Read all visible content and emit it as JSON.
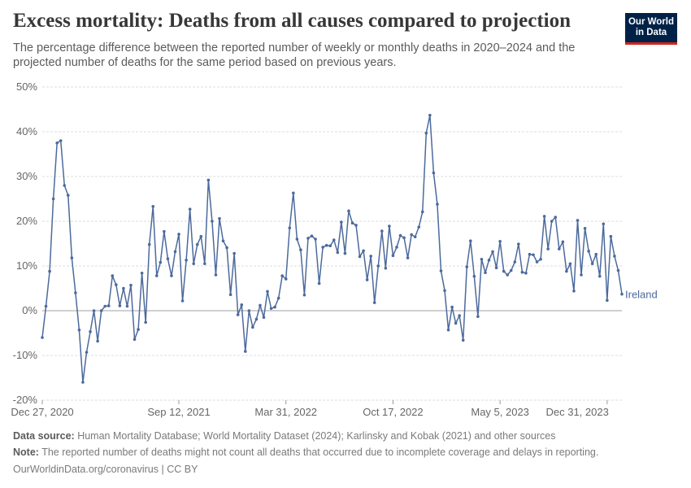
{
  "header": {
    "title": "Excess mortality: Deaths from all causes compared to projection",
    "subtitle": "The percentage difference between the reported number of weekly or monthly deaths in 2020–2024 and the projected number of deaths for the same period based on previous years.",
    "logo_line1": "Our World",
    "logo_line2": "in Data"
  },
  "footer": {
    "source_label": "Data source:",
    "source_text": " Human Mortality Database; World Mortality Dataset (2024); Karlinsky and Kobak (2021) and other sources",
    "note_label": "Note:",
    "note_text": " The reported number of deaths might not count all deaths that occurred due to incomplete coverage and delays in reporting.",
    "credit": "OurWorldinData.org/coronavirus | CC BY"
  },
  "colors": {
    "series": "#4c6a9c",
    "grid": "#dddddd",
    "zero_line": "#a1a1a1",
    "brand": "#002147",
    "brand_accent": "#ce261e"
  },
  "chart_data": {
    "type": "line",
    "title": "Excess mortality: Deaths from all causes compared to projection",
    "ylim": [
      -20,
      50
    ],
    "y_ticks": [
      "-20%",
      "-10%",
      "0%",
      "10%",
      "20%",
      "30%",
      "40%",
      "50%"
    ],
    "y_tick_values": [
      -20,
      -10,
      0,
      10,
      20,
      30,
      40,
      50
    ],
    "x_tick_labels": [
      "Dec 27, 2020",
      "Sep 12, 2021",
      "Mar 31, 2022",
      "Oct 17, 2022",
      "May 5, 2023",
      "Dec 31, 2023"
    ],
    "x_tick_index": [
      0,
      37,
      66,
      95,
      124,
      153
    ],
    "grid": "horizontal dashed",
    "series": [
      {
        "name": "Ireland",
        "values": [
          -6,
          1,
          8.8,
          25,
          37.5,
          38,
          28,
          25.8,
          11.8,
          4,
          -4.3,
          -16,
          -9.3,
          -4.7,
          0,
          -6.8,
          0,
          1,
          1.1,
          7.8,
          5.8,
          1.1,
          5,
          1,
          5.7,
          -6.4,
          -4.2,
          8.4,
          -2.6,
          14.8,
          23.3,
          7.8,
          10.8,
          17.7,
          11.6,
          7.8,
          13.2,
          17.1,
          2.2,
          11.3,
          22.7,
          10.5,
          14.8,
          16.6,
          10.5,
          29.2,
          20,
          8,
          20.6,
          15.6,
          14.1,
          3.6,
          12.8,
          -0.9,
          1.3,
          -9.1,
          0,
          -3.7,
          -1.9,
          1.2,
          -1.5,
          4.3,
          0.5,
          0.8,
          2.8,
          7.8,
          7.1,
          18.5,
          26.3,
          16,
          13.6,
          3.5,
          16.2,
          16.7,
          16,
          6.1,
          14.2,
          14.6,
          14.5,
          15.8,
          13,
          19.8,
          12.8,
          22.3,
          19.6,
          19.1,
          12.1,
          13.4,
          6.9,
          12.2,
          1.8,
          10,
          17.8,
          9.5,
          18.9,
          12.3,
          14.2,
          16.8,
          16.3,
          11.8,
          17,
          16.5,
          18.7,
          22.1,
          39.7,
          43.7,
          30.8,
          23.8,
          8.9,
          4.5,
          -4.3,
          0.8,
          -2.8,
          -1.1,
          -6.6,
          9.8,
          15.6,
          7.7,
          -1.3,
          11.5,
          8.5,
          11.3,
          13.2,
          9.6,
          15.5,
          8.8,
          8,
          9,
          10.9,
          14.9,
          8.6,
          8.4,
          12.6,
          12.5,
          10.9,
          11.5,
          21.1,
          13.8,
          20,
          20.9,
          13.8,
          15.4,
          8.8,
          10.5,
          4.4,
          20.2,
          8,
          18.4,
          13.3,
          10.5,
          12.6,
          7.7,
          19.4,
          2.3,
          16.6,
          12.2,
          9,
          3.7
        ]
      }
    ]
  }
}
